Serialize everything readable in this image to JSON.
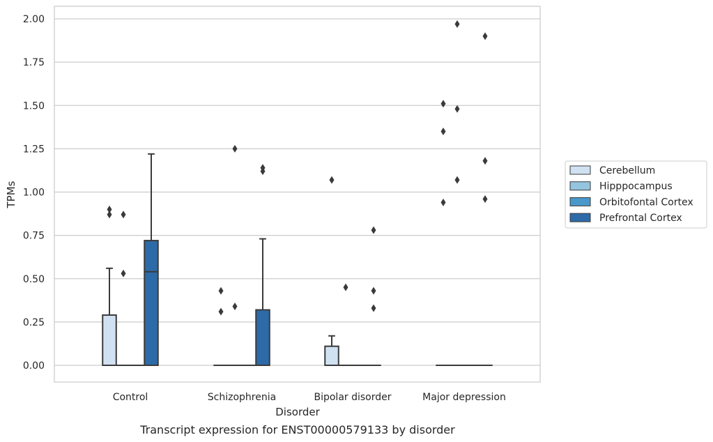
{
  "caption": "Transcript expression for ENST00000579133 by disorder",
  "colors": {
    "Cerebellum": "#d0e1f2",
    "Hipppocampus": "#94c4df",
    "Orbitofontal Cortex": "#4a98c9",
    "Prefrontal Cortex": "#2d6aa8",
    "grid": "#cccccc",
    "spine": "#cccccc",
    "box_line": "#3a3a3a",
    "outlier": "#3a3a3a"
  },
  "chart_data": {
    "type": "box",
    "xlabel": "Disorder",
    "ylabel": "TPMs",
    "ylim": [
      -0.1,
      2.07
    ],
    "yticks": [
      "0.00",
      "0.25",
      "0.50",
      "0.75",
      "1.00",
      "1.25",
      "1.50",
      "1.75",
      "2.00"
    ],
    "grid": "y",
    "legend_position": "right",
    "categories": [
      "Control",
      "Schizophrenia",
      "Bipolar disorder",
      "Major depression"
    ],
    "series": [
      {
        "name": "Cerebellum",
        "boxes": [
          {
            "q1": 0,
            "median": 0,
            "q3": 0.29,
            "whislo": 0,
            "whishi": 0.56,
            "fliers": [
              0.87,
              0.9
            ]
          },
          {
            "q1": 0,
            "median": 0,
            "q3": 0,
            "whislo": 0,
            "whishi": 0,
            "fliers": [
              0.31,
              0.43
            ]
          },
          {
            "q1": 0,
            "median": 0,
            "q3": 0.11,
            "whislo": 0,
            "whishi": 0.17,
            "fliers": [
              1.07
            ]
          },
          {
            "q1": 0,
            "median": 0,
            "q3": 0,
            "whislo": 0,
            "whishi": 0,
            "fliers": [
              0.94,
              1.35,
              1.51
            ]
          }
        ]
      },
      {
        "name": "Hipppocampus",
        "boxes": [
          {
            "q1": 0,
            "median": 0,
            "q3": 0,
            "whislo": 0,
            "whishi": 0,
            "fliers": [
              0.53,
              0.87
            ]
          },
          {
            "q1": 0,
            "median": 0,
            "q3": 0,
            "whislo": 0,
            "whishi": 0,
            "fliers": [
              0.34,
              1.25
            ]
          },
          {
            "q1": 0,
            "median": 0,
            "q3": 0,
            "whislo": 0,
            "whishi": 0,
            "fliers": [
              0.45
            ]
          },
          {
            "q1": 0,
            "median": 0,
            "q3": 0,
            "whislo": 0,
            "whishi": 0,
            "fliers": [
              1.07,
              1.48,
              1.97
            ]
          }
        ]
      },
      {
        "name": "Orbitofontal Cortex",
        "boxes": [
          {
            "q1": 0,
            "median": 0,
            "q3": 0,
            "whislo": 0,
            "whishi": 0,
            "fliers": []
          },
          {
            "q1": 0,
            "median": 0,
            "q3": 0,
            "whislo": 0,
            "whishi": 0,
            "fliers": []
          },
          {
            "q1": 0,
            "median": 0,
            "q3": 0,
            "whislo": 0,
            "whishi": 0,
            "fliers": []
          },
          {
            "q1": 0,
            "median": 0,
            "q3": 0,
            "whislo": 0,
            "whishi": 0,
            "fliers": []
          }
        ]
      },
      {
        "name": "Prefrontal Cortex",
        "boxes": [
          {
            "q1": 0,
            "median": 0.54,
            "q3": 0.72,
            "whislo": 0,
            "whishi": 1.22,
            "fliers": []
          },
          {
            "q1": 0,
            "median": 0,
            "q3": 0.32,
            "whislo": 0,
            "whishi": 0.73,
            "fliers": [
              1.12,
              1.14
            ]
          },
          {
            "q1": 0,
            "median": 0,
            "q3": 0,
            "whislo": 0,
            "whishi": 0,
            "fliers": [
              0.33,
              0.43,
              0.78
            ]
          },
          {
            "q1": 0,
            "median": 0,
            "q3": 0,
            "whislo": 0,
            "whishi": 0,
            "fliers": [
              0.96,
              1.18,
              1.9
            ]
          }
        ]
      }
    ]
  }
}
